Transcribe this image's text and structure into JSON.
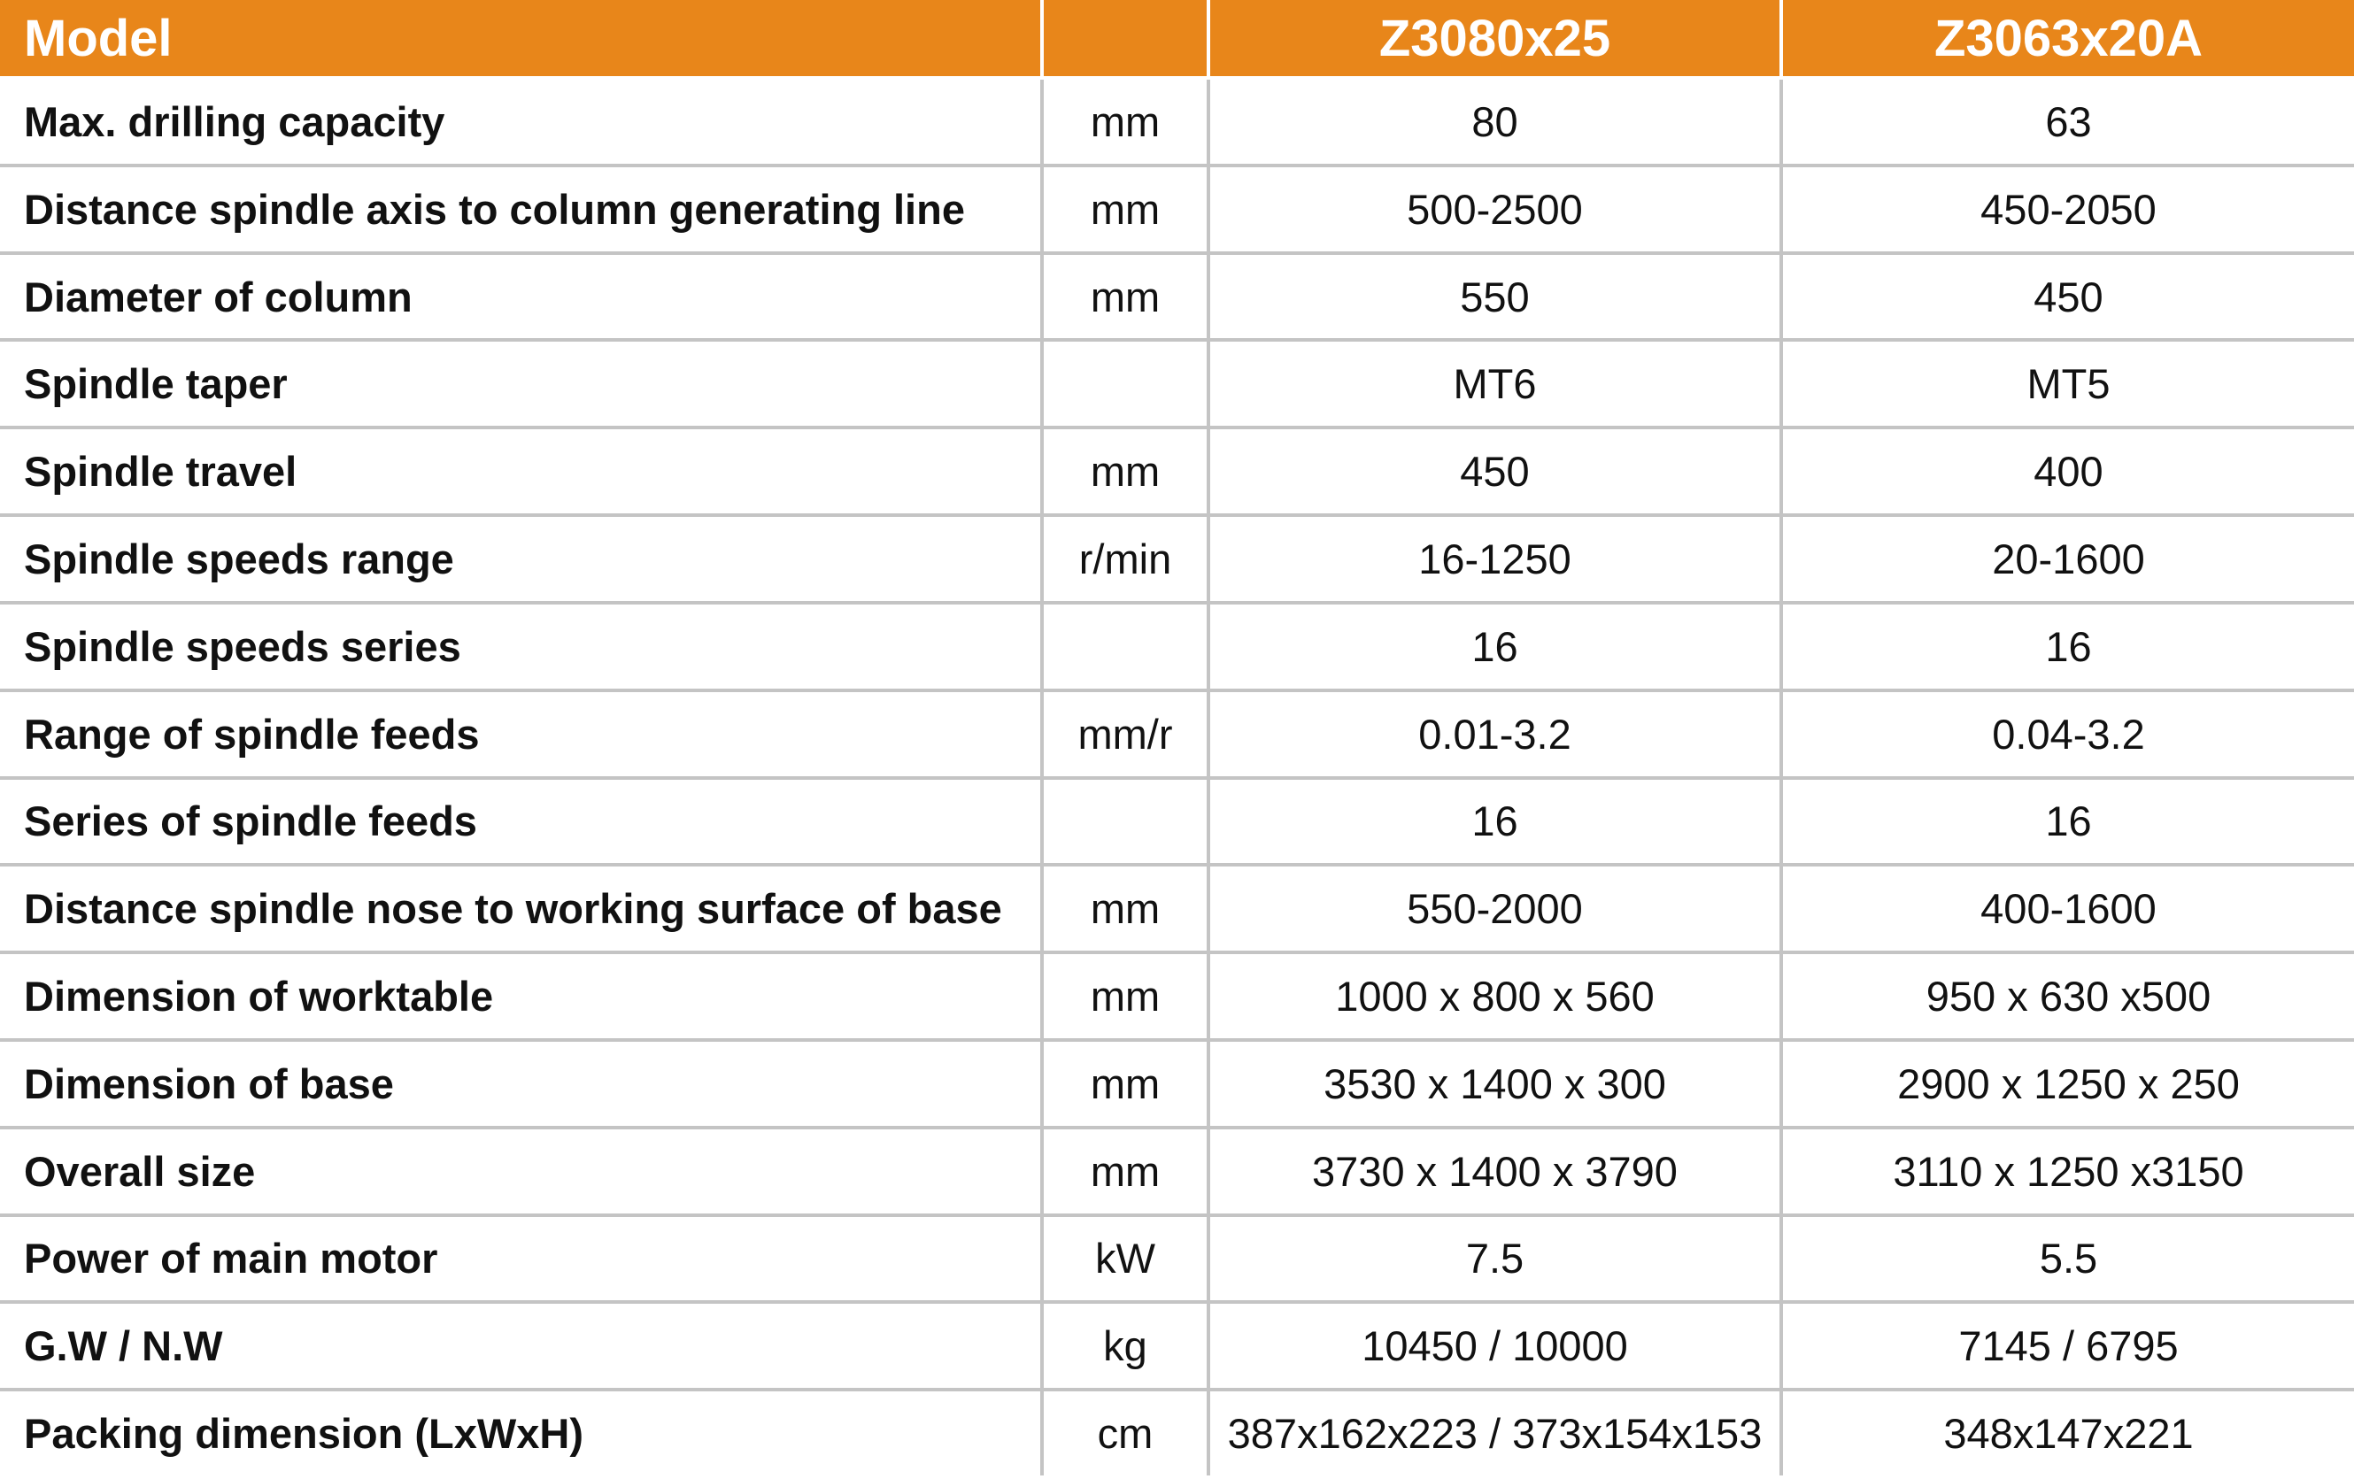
{
  "header": {
    "model": "Model",
    "models": [
      "Z3080x25",
      "Z3063x20A"
    ]
  },
  "rows": [
    {
      "label": "Max. drilling capacity",
      "unit": "mm",
      "values": [
        "80",
        "63"
      ]
    },
    {
      "label": "Distance spindle axis to column generating line",
      "unit": "mm",
      "values": [
        "500-2500",
        "450-2050"
      ]
    },
    {
      "label": "Diameter of column",
      "unit": "mm",
      "values": [
        "550",
        "450"
      ]
    },
    {
      "label": "Spindle taper",
      "values": [
        "MT6",
        "MT5"
      ]
    },
    {
      "label": "Spindle travel",
      "unit": "mm",
      "values": [
        "450",
        "400"
      ]
    },
    {
      "label": "Spindle speeds range",
      "unit": "r/min",
      "values": [
        "16-1250",
        "20-1600"
      ]
    },
    {
      "label": "Spindle speeds series",
      "values": [
        "16",
        "16"
      ]
    },
    {
      "label": "Range of spindle feeds",
      "unit": "mm/r",
      "values": [
        "0.01-3.2",
        "0.04-3.2"
      ]
    },
    {
      "label": "Series of spindle feeds",
      "values": [
        "16",
        "16"
      ]
    },
    {
      "label": "Distance spindle nose to working surface of base",
      "unit": "mm",
      "values": [
        "550-2000",
        "400-1600"
      ]
    },
    {
      "label": "Dimension of worktable",
      "unit": "mm",
      "values": [
        "1000 x 800 x 560",
        "950 x 630 x500"
      ]
    },
    {
      "label": "Dimension of base",
      "unit": "mm",
      "values": [
        "3530 x 1400 x 300",
        "2900 x 1250 x 250"
      ]
    },
    {
      "label": "Overall size",
      "unit": "mm",
      "values": [
        "3730 x 1400 x 3790",
        "3110 x 1250 x3150"
      ]
    },
    {
      "label": "Power of main motor",
      "unit": "kW",
      "values": [
        "7.5",
        "5.5"
      ]
    },
    {
      "label": "G.W / N.W",
      "unit": "kg",
      "values": [
        "10450 / 10000",
        "7145 / 6795"
      ]
    },
    {
      "label": "Packing dimension (LxWxH)",
      "unit": "cm",
      "values": [
        "387x162x223 / 373x154x153",
        "348x147x221"
      ]
    }
  ]
}
